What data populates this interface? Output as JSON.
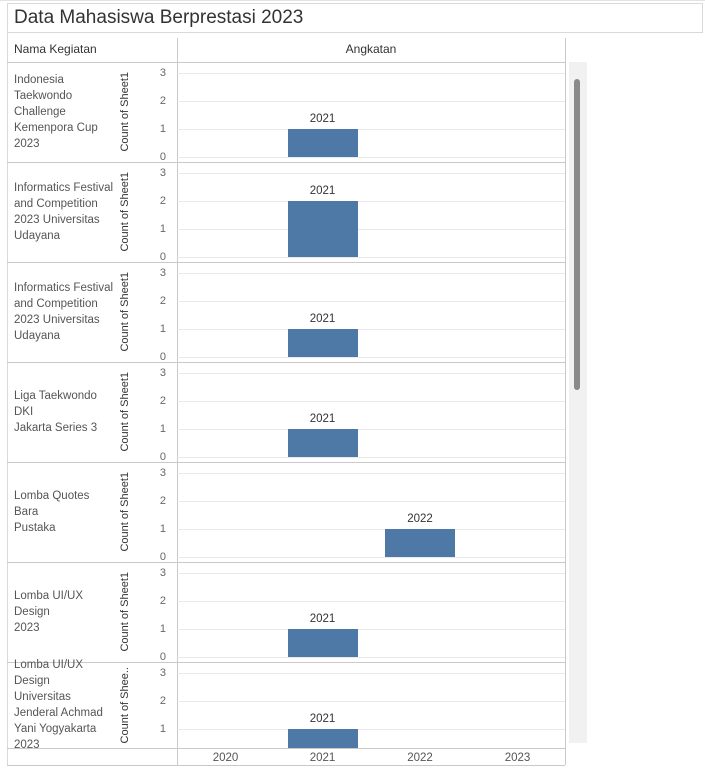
{
  "title": "Data Mahasiswa Berprestasi 2023",
  "headers": {
    "name_column": "Nama Kegiatan",
    "chart_column": "Angkatan"
  },
  "axis": {
    "years": [
      "2020",
      "2021",
      "2022",
      "2023"
    ],
    "y_axis_label": "Count of Sheet1",
    "y_ticks": [
      0,
      1,
      2,
      3
    ]
  },
  "rows": [
    {
      "name": "Indonesia Taekwondo Challenge Kemenpora Cup 2023",
      "name_lines": [
        "Indonesia",
        "Taekwondo",
        "Challenge",
        "Kemenpora Cup",
        "2023"
      ],
      "y_label": "Count of Sheet1",
      "ticks": [
        3,
        2,
        1,
        0
      ],
      "bar": {
        "year": "2021",
        "value": 1,
        "label": "2021"
      }
    },
    {
      "name": "Informatics Festival and Competition 2023 Universitas Udayana",
      "name_lines": [
        "Informatics Festival",
        "and Competition",
        "2023 Universitas",
        "Udayana"
      ],
      "y_label": "Count of Sheet1",
      "ticks": [
        3,
        2,
        1,
        0
      ],
      "bar": {
        "year": "2021",
        "value": 2,
        "label": "2021"
      }
    },
    {
      "name": "Informatics Festival and Competition 2023 Universitas Udayana",
      "name_lines": [
        "Informatics Festival",
        "and Competition",
        "2023 Universitas",
        "Udayana"
      ],
      "y_label": "Count of Sheet1",
      "ticks": [
        3,
        2,
        1,
        0
      ],
      "bar": {
        "year": "2021",
        "value": 1,
        "label": "2021"
      }
    },
    {
      "name": "Liga Taekwondo DKI Jakarta Series 3",
      "name_lines": [
        "Liga Taekwondo DKI",
        "Jakarta Series 3"
      ],
      "y_label": "Count of Sheet1",
      "ticks": [
        3,
        2,
        1,
        0
      ],
      "bar": {
        "year": "2021",
        "value": 1,
        "label": "2021"
      }
    },
    {
      "name": "Lomba Quotes Bara Pustaka",
      "name_lines": [
        "Lomba Quotes Bara",
        "Pustaka"
      ],
      "y_label": "Count of Sheet1",
      "ticks": [
        3,
        2,
        1,
        0
      ],
      "bar": {
        "year": "2022",
        "value": 1,
        "label": "2022"
      }
    },
    {
      "name": "Lomba UI/UX Design 2023",
      "name_lines": [
        "Lomba UI/UX Design",
        "2023"
      ],
      "y_label": "Count of Sheet1",
      "ticks": [
        3,
        2,
        1,
        0
      ],
      "bar": {
        "year": "2021",
        "value": 1,
        "label": "2021"
      }
    },
    {
      "name": "Lomba UI/UX Design Universitas Jenderal Achmad Yani Yogyakarta 2023",
      "name_lines": [
        "Lomba UI/UX Design",
        "Universitas",
        "Jenderal Achmad",
        "Yani Yogyakarta",
        "2023"
      ],
      "y_label": "Count of Shee..",
      "ticks": [
        3,
        2,
        1
      ],
      "bar": {
        "year": "2021",
        "value": 1,
        "label": "2021"
      },
      "truncated": true
    }
  ],
  "colors": {
    "bar": "#4e79a7",
    "separator": "#c9c9c9",
    "gridline": "#e9e9e9",
    "title_text": "#333333",
    "name_text": "#555555",
    "tick_text": "#666666",
    "scroll_track": "#f1f1f1",
    "scroll_thumb": "#8a8a8a"
  },
  "chart_data": {
    "type": "bar",
    "layout": "small-multiples-rows",
    "title": "Data Mahasiswa Berprestasi 2023",
    "row_dimension": "Nama Kegiatan",
    "column_dimension": "Angkatan",
    "x": [
      "2020",
      "2021",
      "2022",
      "2023"
    ],
    "ylabel": "Count of Sheet1",
    "ylim": [
      0,
      3
    ],
    "grid": true,
    "legend": false,
    "series": [
      {
        "name": "Indonesia Taekwondo Challenge Kemenpora Cup 2023",
        "values": [
          0,
          1,
          0,
          0
        ]
      },
      {
        "name": "Informatics Festival and Competition 2023 Universitas Udayana",
        "values": [
          0,
          2,
          0,
          0
        ]
      },
      {
        "name": "Informatics Festival and Competition 2023 Universitas Udayana",
        "values": [
          0,
          1,
          0,
          0
        ]
      },
      {
        "name": "Liga Taekwondo DKI Jakarta Series 3",
        "values": [
          0,
          1,
          0,
          0
        ]
      },
      {
        "name": "Lomba Quotes Bara Pustaka",
        "values": [
          0,
          0,
          1,
          0
        ]
      },
      {
        "name": "Lomba UI/UX Design 2023",
        "values": [
          0,
          1,
          0,
          0
        ]
      },
      {
        "name": "Lomba UI/UX Design Universitas Jenderal Achmad Yani Yogyakarta 2023",
        "values": [
          0,
          1,
          0,
          0
        ]
      }
    ]
  }
}
